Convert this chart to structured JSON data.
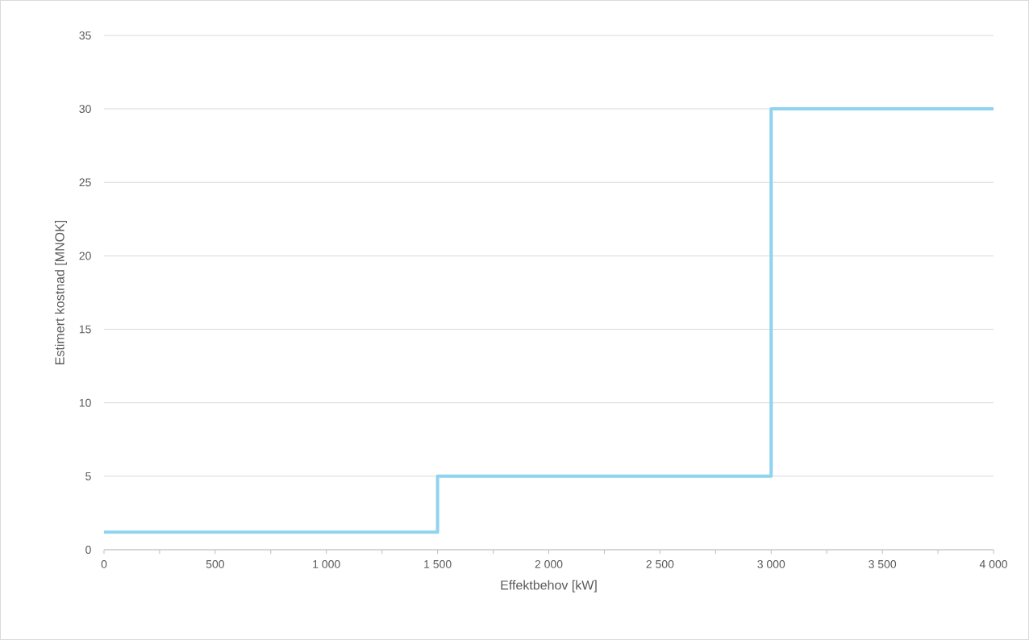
{
  "chart_data": {
    "type": "step",
    "xlabel": "Effektbehov [kW]",
    "ylabel": "Estimert kostnad [MNOK]",
    "x": [
      0,
      1500,
      3000,
      4000
    ],
    "values": [
      1.2,
      5,
      30,
      30
    ],
    "color": "#8fd3ee",
    "xlim": [
      0,
      4000
    ],
    "ylim": [
      0,
      35
    ],
    "xticks": [
      0,
      {
        "value": 250,
        "label": null
      },
      500,
      {
        "value": 750,
        "label": null
      },
      {
        "value": 1000,
        "label": "1 000"
      },
      {
        "value": 1250,
        "label": null
      },
      {
        "value": 1500,
        "label": "1 500"
      },
      {
        "value": 1750,
        "label": null
      },
      {
        "value": 2000,
        "label": "2 000"
      },
      {
        "value": 2250,
        "label": null
      },
      {
        "value": 2500,
        "label": "2 500"
      },
      {
        "value": 2750,
        "label": null
      },
      {
        "value": 3000,
        "label": "3 000"
      },
      {
        "value": 3250,
        "label": null
      },
      {
        "value": 3500,
        "label": "3 500"
      },
      {
        "value": 3750,
        "label": null
      },
      {
        "value": 4000,
        "label": "4 000"
      }
    ],
    "yticks": [
      0,
      5,
      10,
      15,
      20,
      25,
      30,
      35
    ],
    "grid": "y"
  }
}
